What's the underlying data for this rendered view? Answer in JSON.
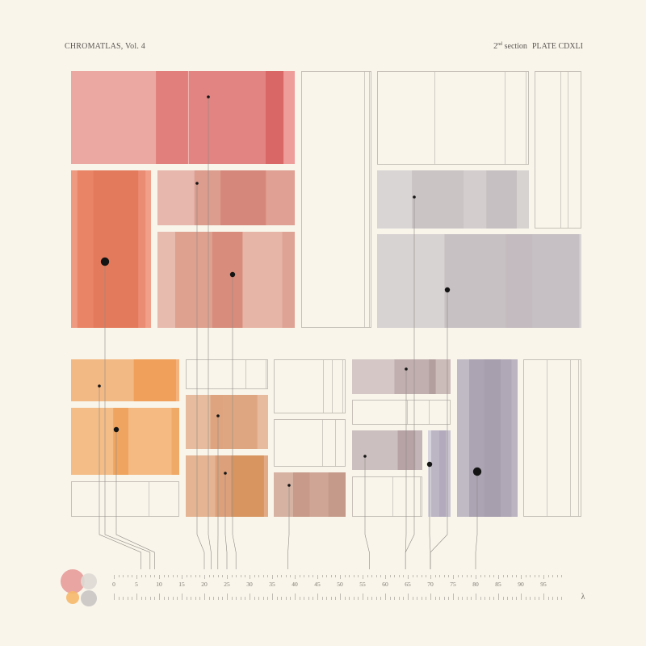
{
  "header": {
    "series_title": "CHROMATLAS, Vol. 4",
    "section_number": "2",
    "section_suffix": "nd",
    "section_word": "section",
    "plate": "PLATE CDXLI"
  },
  "chart_data": {
    "type": "treemap",
    "axis": {
      "min": 0,
      "max": 100,
      "tick_labels": [
        0,
        5,
        10,
        15,
        20,
        25,
        30,
        35,
        40,
        45,
        50,
        55,
        60,
        65,
        70,
        75,
        80,
        85,
        90,
        95
      ],
      "minor_step": 1,
      "symbol": "λ"
    },
    "legend_swatches": [
      {
        "color": "#e79c9a",
        "size": "large"
      },
      {
        "color": "#dedad4",
        "size": "medium"
      },
      {
        "color": "#f6b86a",
        "size": "small"
      },
      {
        "color": "#c9c5c4",
        "size": "medium"
      }
    ],
    "groups": [
      {
        "name": "upper",
        "cells": [
          {
            "id": "A",
            "color": "#e58582",
            "marker": 21.5,
            "marker_size": "small",
            "bands": [
              [
                0,
                0.38,
                "#eba8a3"
              ],
              [
                0.38,
                0.52,
                "#e07f7b"
              ],
              [
                0.52,
                0.87,
                "#e28481"
              ],
              [
                0.87,
                0.95,
                "#d96765"
              ],
              [
                0.95,
                1,
                "#ee9d9a"
              ]
            ]
          },
          {
            "id": "B",
            "color": "#e87a5e",
            "marker": 8,
            "marker_size": "large",
            "bands": [
              [
                0,
                0.08,
                "#ee9a80"
              ],
              [
                0.08,
                0.28,
                "#e98466"
              ],
              [
                0.28,
                0.84,
                "#e47a5c"
              ],
              [
                0.84,
                0.93,
                "#ea8c73"
              ],
              [
                0.93,
                1,
                "#f19f88"
              ]
            ]
          },
          {
            "id": "C",
            "color": "#dc9282",
            "marker": 20,
            "marker_size": "small",
            "bands": [
              [
                0,
                0.27,
                "#e7b6ac"
              ],
              [
                0.27,
                0.46,
                "#dc9c8e"
              ],
              [
                0.46,
                0.79,
                "#d5877b"
              ],
              [
                0.79,
                1,
                "#e0a093"
              ]
            ]
          },
          {
            "id": "D",
            "color": "#dd9988",
            "marker": 27,
            "marker_size": "medium",
            "bands": [
              [
                0,
                0.13,
                "#e7bbae"
              ],
              [
                0.13,
                0.4,
                "#dea18f"
              ],
              [
                0.4,
                0.62,
                "#d88c7b"
              ],
              [
                0.62,
                0.91,
                "#e6b5a7"
              ],
              [
                0.91,
                1,
                "#dea394"
              ]
            ]
          },
          {
            "id": "E",
            "color": "#ffffff",
            "empty": true,
            "lines": [
              0.9,
              0.97
            ]
          },
          {
            "id": "F",
            "color": "#ffffff",
            "empty": true,
            "lines": [
              0.38,
              0.84,
              0.98
            ]
          },
          {
            "id": "G",
            "color": "#ffffff",
            "empty": true,
            "lines": [
              0.55,
              0.7
            ]
          },
          {
            "id": "H",
            "color": "#c9c3c3",
            "marker": 64.5,
            "marker_size": "small",
            "bands": [
              [
                0,
                0.23,
                "#d9d5d4"
              ],
              [
                0.23,
                0.57,
                "#cbc4c5"
              ],
              [
                0.57,
                0.72,
                "#d3cdce"
              ],
              [
                0.72,
                0.92,
                "#c7c0c2"
              ],
              [
                0.92,
                1,
                "#d7d3d1"
              ]
            ]
          },
          {
            "id": "I",
            "color": "#c5bfc2",
            "marker": 70,
            "marker_size": "medium",
            "bands": [
              [
                0,
                0.33,
                "#d8d3d3"
              ],
              [
                0.33,
                0.63,
                "#c8c1c4"
              ],
              [
                0.63,
                0.76,
                "#c3bbbf"
              ],
              [
                0.76,
                0.99,
                "#c6bfc3"
              ],
              [
                0.99,
                1,
                "#d8d4d4"
              ]
            ]
          }
        ]
      },
      {
        "name": "lower",
        "cells": [
          {
            "id": "J",
            "color": "#f2a766",
            "marker": 6,
            "marker_size": "small",
            "bands": [
              [
                0,
                0.58,
                "#f3b985"
              ],
              [
                0.58,
                0.97,
                "#f0a05a"
              ],
              [
                0.97,
                1,
                "#f4b27c"
              ]
            ]
          },
          {
            "id": "K",
            "color": "#f3ad6e",
            "marker": 9,
            "marker_size": "medium",
            "bands": [
              [
                0,
                0.39,
                "#f4bd87"
              ],
              [
                0.39,
                0.53,
                "#efa55f"
              ],
              [
                0.53,
                0.93,
                "#f4ba82"
              ],
              [
                0.93,
                1,
                "#f0aa68"
              ]
            ]
          },
          {
            "id": "L",
            "color": "#ffffff",
            "empty": true,
            "lines": [
              0.72
            ]
          },
          {
            "id": "M",
            "color": "#ffffff",
            "empty": true,
            "lines": [
              0.73,
              0.97
            ]
          },
          {
            "id": "N",
            "color": "#e2a77f",
            "marker": 23,
            "marker_size": "small",
            "bands": [
              [
                0,
                0.3,
                "#e7bc9e"
              ],
              [
                0.3,
                0.45,
                "#dea47f"
              ],
              [
                0.45,
                0.87,
                "#dfa682"
              ],
              [
                0.87,
                1,
                "#e7bc9e"
              ]
            ]
          },
          {
            "id": "O",
            "color": "#dd9c70",
            "marker": 25,
            "marker_size": "small",
            "bands": [
              [
                0,
                0.36,
                "#e5b593"
              ],
              [
                0.36,
                0.55,
                "#dca07b"
              ],
              [
                0.55,
                0.95,
                "#d8955f"
              ],
              [
                0.95,
                1,
                "#e2ab85"
              ]
            ]
          },
          {
            "id": "P",
            "color": "#ffffff",
            "empty": true,
            "lines": [
              0.68,
              0.81,
              0.96
            ]
          },
          {
            "id": "Q",
            "color": "#ffffff",
            "empty": true,
            "lines": [
              0.67,
              0.85
            ]
          },
          {
            "id": "R",
            "color": "#c9a293",
            "marker": 38.5,
            "marker_size": "small",
            "bands": [
              [
                0,
                0.27,
                "#d6b2a3"
              ],
              [
                0.27,
                0.5,
                "#c79a8a"
              ],
              [
                0.5,
                0.76,
                "#cfa696"
              ],
              [
                0.76,
                1,
                "#c59a8a"
              ]
            ]
          },
          {
            "id": "S",
            "color": "#c4b3b3",
            "marker": 64.5,
            "marker_size": "small",
            "bands": [
              [
                0,
                0.43,
                "#d4c7c5"
              ],
              [
                0.43,
                0.78,
                "#c1afaf"
              ],
              [
                0.78,
                0.85,
                "#b49f9f"
              ],
              [
                0.85,
                1,
                "#cbbbb9"
              ]
            ]
          },
          {
            "id": "T",
            "color": "#ffffff",
            "empty": true,
            "lines": [
              0.56,
              0.78
            ]
          },
          {
            "id": "U",
            "color": "#b8a5a9",
            "marker": 56.5,
            "marker_size": "small",
            "bands": [
              [
                0,
                0.65,
                "#ccbfbf"
              ],
              [
                0.65,
                0.9,
                "#b7a3a6"
              ],
              [
                0.9,
                1,
                "#c3b4b7"
              ]
            ]
          },
          {
            "id": "V",
            "color": "#bcb6c4",
            "marker": 70,
            "marker_size": "medium",
            "bands": [
              [
                0,
                0.15,
                "#d6d3dc"
              ],
              [
                0.15,
                0.5,
                "#bcb5c4"
              ],
              [
                0.5,
                0.8,
                "#b3abbd"
              ],
              [
                0.8,
                1,
                "#c8c3cf"
              ]
            ]
          },
          {
            "id": "W",
            "color": "#ffffff",
            "empty": true,
            "lines": [
              0.57,
              0.97
            ]
          },
          {
            "id": "X",
            "color": "#aba3b2",
            "marker": 80,
            "marker_size": "large",
            "bands": [
              [
                0,
                0.2,
                "#c0bac5"
              ],
              [
                0.2,
                0.45,
                "#aca4b2"
              ],
              [
                0.45,
                0.72,
                "#a79eae"
              ],
              [
                0.72,
                0.9,
                "#b0a8b6"
              ],
              [
                0.9,
                1,
                "#bcb5c1"
              ]
            ]
          },
          {
            "id": "Y",
            "color": "#ffffff",
            "empty": true,
            "lines": [
              0.4,
              0.8,
              0.95
            ]
          }
        ]
      }
    ]
  }
}
